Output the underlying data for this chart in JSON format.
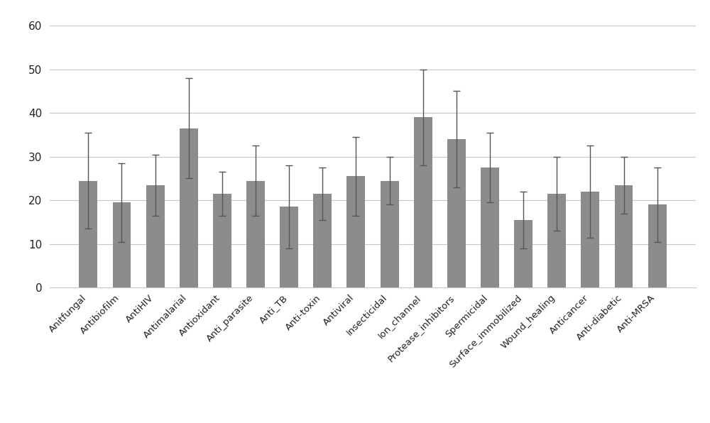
{
  "categories": [
    "Anitfungal",
    "Antibiofilm",
    "AntiHIV",
    "Antimalarial",
    "Antioxidant",
    "Anti_parasite",
    "Anti_TB",
    "Anti-toxin",
    "Antiviral",
    "Insecticidal",
    "Ion_channel",
    "Protease_inhibitors",
    "Spermicidal",
    "Surface_immobilized",
    "Wound_healing",
    "Anticancer",
    "Anti-diabetic",
    "Anti-MRSA"
  ],
  "values": [
    24.5,
    19.5,
    23.5,
    36.5,
    21.5,
    24.5,
    18.5,
    21.5,
    25.5,
    24.5,
    39.0,
    34.0,
    27.5,
    15.5,
    21.5,
    22.0,
    23.5,
    19.0
  ],
  "errors_upper": [
    11.0,
    9.0,
    7.0,
    11.5,
    5.0,
    8.0,
    9.5,
    6.0,
    9.0,
    5.5,
    11.0,
    11.0,
    8.0,
    6.5,
    8.5,
    10.5,
    6.5,
    8.5
  ],
  "errors_lower": [
    11.0,
    9.0,
    7.0,
    11.5,
    5.0,
    8.0,
    9.5,
    6.0,
    9.0,
    5.5,
    11.0,
    11.0,
    8.0,
    6.5,
    8.5,
    10.5,
    6.5,
    8.5
  ],
  "bar_color": "#8c8c8c",
  "error_color": "#555555",
  "ylim": [
    0,
    62
  ],
  "yticks": [
    0,
    10,
    20,
    30,
    40,
    50,
    60
  ],
  "background_color": "#ffffff",
  "grid_color": "#c8c8c8",
  "bar_width": 0.55,
  "figsize": [
    10.0,
    5.96
  ],
  "dpi": 100
}
